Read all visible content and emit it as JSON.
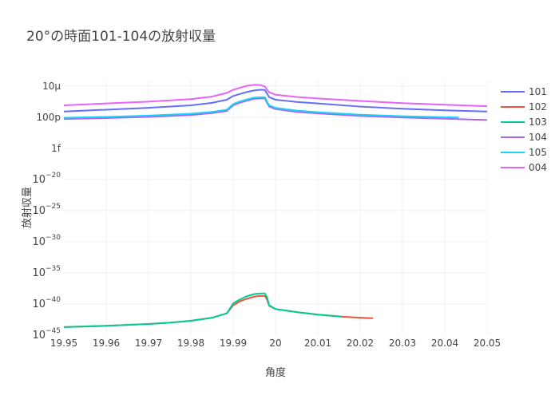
{
  "chart_data": {
    "type": "line",
    "title": "20°の時面101-104の放射収量",
    "xlabel": "角度",
    "ylabel": "放射収量",
    "xlim": [
      19.95,
      20.05
    ],
    "ylim_log10": [
      -45,
      -4
    ],
    "y_scale": "log",
    "grid": true,
    "legend_position": "top-right",
    "x_ticks": [
      19.95,
      19.96,
      19.97,
      19.98,
      19.99,
      20,
      20.01,
      20.02,
      20.03,
      20.04,
      20.05
    ],
    "x_tick_labels": [
      "19.95",
      "19.96",
      "19.97",
      "19.98",
      "19.99",
      "20",
      "20.01",
      "20.02",
      "20.03",
      "20.04",
      "20.05"
    ],
    "y_ticks": [
      {
        "log10": -5,
        "label": "10μ"
      },
      {
        "log10": -10,
        "label": "100p"
      },
      {
        "log10": -15,
        "label": "1f"
      },
      {
        "log10": -20,
        "base": "10",
        "exp": "−20"
      },
      {
        "log10": -25,
        "base": "10",
        "exp": "−25"
      },
      {
        "log10": -30,
        "base": "10",
        "exp": "−30"
      },
      {
        "log10": -35,
        "base": "10",
        "exp": "−35"
      },
      {
        "log10": -40,
        "base": "10",
        "exp": "−40"
      },
      {
        "log10": -45,
        "base": "10",
        "exp": "−45"
      }
    ],
    "series": [
      {
        "name": "101",
        "color": "#636efa",
        "x": [
          19.95,
          19.96,
          19.97,
          19.98,
          19.985,
          19.9885,
          19.99,
          19.9915,
          19.993,
          19.995,
          19.9965,
          19.9975,
          19.998,
          19.9985,
          20.0,
          20.005,
          20.01,
          20.02,
          20.03,
          20.04,
          20.05
        ],
        "log10y": [
          -9.1,
          -8.8,
          -8.5,
          -8.1,
          -7.7,
          -7.2,
          -6.6,
          -6.3,
          -6.0,
          -5.7,
          -5.6,
          -5.65,
          -6.2,
          -6.8,
          -7.2,
          -7.55,
          -7.8,
          -8.3,
          -8.65,
          -8.9,
          -9.1
        ]
      },
      {
        "name": "102",
        "color": "#ef553b",
        "x": [
          19.95,
          19.96,
          19.97,
          19.975,
          19.98,
          19.985,
          19.9885,
          19.99,
          19.9915,
          19.993,
          19.995,
          19.9965,
          19.9975,
          19.998,
          19.9985,
          20.0,
          20.005,
          20.01,
          20.015,
          20.02,
          20.023
        ],
        "log10y": [
          -43.7,
          -43.5,
          -43.2,
          -43.0,
          -42.7,
          -42.2,
          -41.5,
          -40.2,
          -39.6,
          -39.2,
          -38.8,
          -38.7,
          -38.7,
          -39.3,
          -40.3,
          -40.8,
          -41.3,
          -41.7,
          -42.0,
          -42.2,
          -42.3
        ]
      },
      {
        "name": "103",
        "color": "#00cc96",
        "x": [
          19.95,
          19.96,
          19.97,
          19.975,
          19.98,
          19.985,
          19.9885,
          19.99,
          19.9915,
          19.993,
          19.995,
          19.9965,
          19.9975,
          19.998,
          19.9985,
          20.0,
          20.005,
          20.01,
          20.0155
        ],
        "log10y": [
          -43.7,
          -43.5,
          -43.2,
          -43.0,
          -42.7,
          -42.2,
          -41.5,
          -39.9,
          -39.3,
          -38.8,
          -38.4,
          -38.3,
          -38.3,
          -38.9,
          -40.2,
          -40.8,
          -41.3,
          -41.7,
          -42.0
        ]
      },
      {
        "name": "104",
        "color": "#ab63fa",
        "x": [
          19.95,
          19.96,
          19.97,
          19.98,
          19.985,
          19.9885,
          19.99,
          19.9915,
          19.993,
          19.995,
          19.9965,
          19.9975,
          19.998,
          19.9985,
          20.0,
          20.005,
          20.01,
          20.02,
          20.03,
          20.04,
          20.05
        ],
        "log10y": [
          -10.3,
          -10.15,
          -9.95,
          -9.65,
          -9.35,
          -9.0,
          -8.1,
          -7.7,
          -7.4,
          -7.05,
          -7.0,
          -7.0,
          -7.7,
          -8.3,
          -8.7,
          -9.15,
          -9.4,
          -9.8,
          -10.05,
          -10.25,
          -10.45
        ]
      },
      {
        "name": "105",
        "color": "#19d3f3",
        "x": [
          19.95,
          19.96,
          19.97,
          19.98,
          19.985,
          19.9885,
          19.99,
          19.9915,
          19.993,
          19.995,
          19.9965,
          19.9975,
          19.998,
          19.9985,
          20.0,
          20.005,
          20.01,
          20.02,
          20.03,
          20.04,
          20.0433
        ],
        "log10y": [
          -10.1,
          -9.95,
          -9.75,
          -9.45,
          -9.15,
          -8.8,
          -7.9,
          -7.5,
          -7.2,
          -6.85,
          -6.8,
          -6.8,
          -7.5,
          -8.1,
          -8.5,
          -8.95,
          -9.2,
          -9.6,
          -9.85,
          -10.0,
          -10.05
        ]
      },
      {
        "name": "004",
        "color": "#ff6692",
        "stroke": "#e763fa",
        "x": [
          19.95,
          19.96,
          19.97,
          19.98,
          19.985,
          19.9885,
          19.99,
          19.9915,
          19.993,
          19.995,
          19.9965,
          19.9975,
          19.998,
          19.9985,
          20.0,
          20.005,
          20.01,
          20.02,
          20.03,
          20.04,
          20.05
        ],
        "log10y": [
          -8.1,
          -7.8,
          -7.5,
          -7.1,
          -6.7,
          -6.1,
          -5.6,
          -5.3,
          -5.0,
          -4.8,
          -4.85,
          -5.1,
          -5.6,
          -6.0,
          -6.4,
          -6.75,
          -7.0,
          -7.4,
          -7.75,
          -8.0,
          -8.25
        ]
      }
    ]
  }
}
